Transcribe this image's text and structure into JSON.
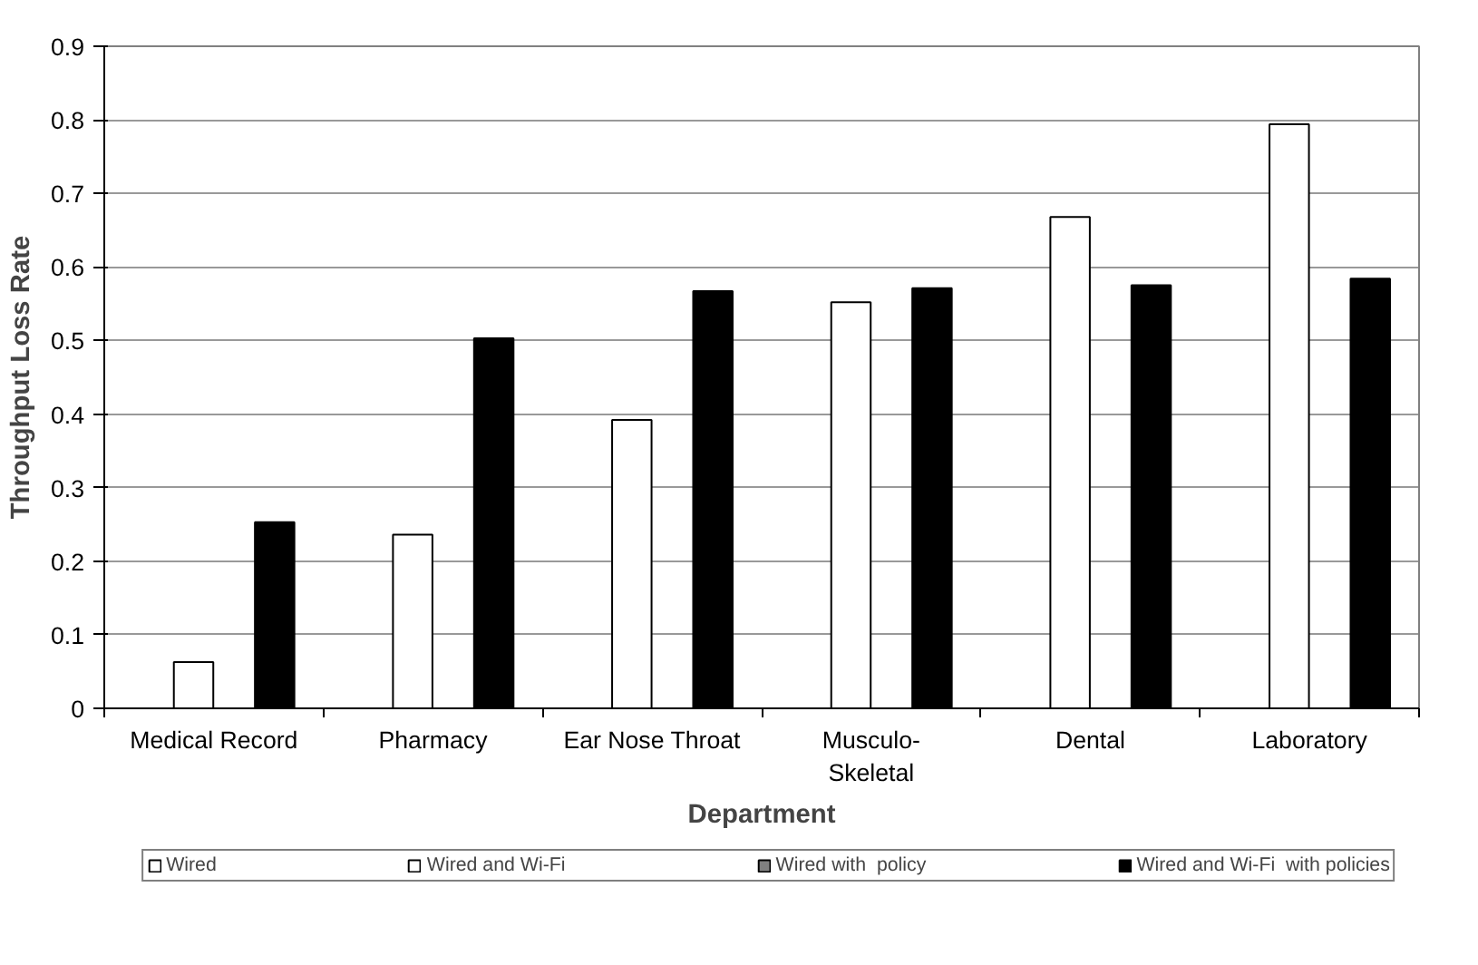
{
  "chart_data": {
    "type": "bar",
    "xlabel": "Department",
    "ylabel": "Throughput Loss Rate",
    "categories": [
      "Medical Record",
      "Pharmacy",
      "Ear Nose Throat",
      "Musculo-\nSkeletal",
      "Dental",
      "Laboratory"
    ],
    "series": [
      {
        "name": "Wired",
        "color": "#ffffff",
        "values": [
          null,
          null,
          null,
          null,
          null,
          null
        ]
      },
      {
        "name": "Wired and Wi-Fi",
        "color": "#ffffff",
        "values": [
          0.063,
          0.236,
          0.392,
          0.552,
          0.668,
          0.794
        ]
      },
      {
        "name": "Wired with  policy",
        "color": "#808080",
        "values": [
          null,
          null,
          null,
          null,
          null,
          null
        ]
      },
      {
        "name": "Wired and Wi-Fi  with policies",
        "color": "#000000",
        "values": [
          0.253,
          0.503,
          0.567,
          0.571,
          0.575,
          0.584
        ]
      }
    ],
    "ylim": [
      0,
      0.9
    ],
    "yticks": [
      0,
      0.1,
      0.2,
      0.3,
      0.4,
      0.5,
      0.6,
      0.7,
      0.8,
      0.9
    ],
    "grid": "y",
    "legend": "bottom"
  }
}
